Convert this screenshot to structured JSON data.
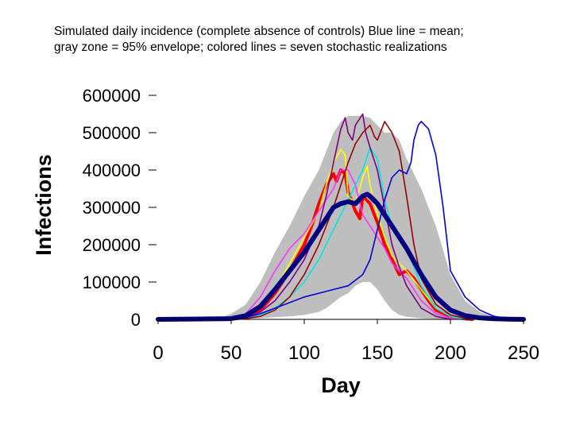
{
  "caption": {
    "line1": "Simulated daily incidence (complete absence of controls) Blue line = mean;",
    "line2": "gray zone = 95% envelope; colored lines = seven stochastic realizations"
  },
  "chart_data": {
    "type": "line",
    "title": "",
    "xlabel": "Day",
    "ylabel": "Infections",
    "xlim": [
      0,
      250
    ],
    "ylim": [
      0,
      600000
    ],
    "x_ticks": [
      0,
      50,
      100,
      150,
      200,
      250
    ],
    "y_ticks": [
      0,
      100000,
      200000,
      300000,
      400000,
      500000,
      600000
    ],
    "y_tick_labels": [
      "0",
      "100000",
      "200000",
      "300000",
      "400000",
      "500000",
      "600000"
    ],
    "grid": false,
    "legend": "none",
    "envelope": {
      "name": "95% envelope",
      "color": "#bebebe",
      "x": [
        0,
        40,
        50,
        60,
        70,
        80,
        90,
        100,
        110,
        115,
        120,
        125,
        130,
        135,
        140,
        145,
        150,
        155,
        160,
        165,
        170,
        180,
        190,
        200,
        210,
        220,
        230,
        240,
        250
      ],
      "upper": [
        0,
        1000,
        15000,
        40000,
        100000,
        180000,
        250000,
        330000,
        400000,
        450000,
        500000,
        530000,
        545000,
        545000,
        545000,
        540000,
        520000,
        500000,
        500000,
        480000,
        430000,
        350000,
        250000,
        120000,
        50000,
        20000,
        8000,
        3000,
        0
      ],
      "lower": [
        0,
        0,
        0,
        1000,
        3000,
        6000,
        8000,
        12000,
        20000,
        30000,
        45000,
        60000,
        70000,
        90000,
        100000,
        100000,
        80000,
        50000,
        25000,
        12000,
        7000,
        3000,
        1000,
        0,
        0,
        0,
        0,
        0,
        0
      ]
    },
    "series": [
      {
        "color": "#ff0000",
        "x": [
          0,
          50,
          60,
          70,
          80,
          90,
          100,
          105,
          110,
          115,
          120,
          122,
          125,
          128,
          130,
          135,
          138,
          140,
          145,
          150,
          155,
          160,
          165,
          170,
          175,
          180,
          185,
          190,
          200,
          210,
          215
        ],
        "values": [
          0,
          500,
          5000,
          25000,
          70000,
          130000,
          200000,
          250000,
          310000,
          360000,
          390000,
          370000,
          400000,
          390000,
          340000,
          290000,
          270000,
          330000,
          310000,
          260000,
          200000,
          160000,
          120000,
          130000,
          110000,
          80000,
          50000,
          25000,
          8000,
          1500,
          0
        ]
      },
      {
        "color": "#ffff00",
        "x": [
          0,
          50,
          60,
          70,
          80,
          90,
          100,
          110,
          115,
          120,
          125,
          128,
          130,
          135,
          140,
          143,
          145,
          150,
          155,
          160,
          170,
          180,
          190,
          200,
          210
        ],
        "values": [
          0,
          1000,
          8000,
          30000,
          80000,
          150000,
          220000,
          290000,
          360000,
          420000,
          455000,
          440000,
          330000,
          310000,
          380000,
          410000,
          360000,
          280000,
          220000,
          170000,
          130000,
          80000,
          30000,
          8000,
          0
        ]
      },
      {
        "color": "#ff33ff",
        "x": [
          0,
          50,
          60,
          70,
          80,
          90,
          100,
          110,
          120,
          125,
          130,
          135,
          140,
          150,
          155,
          160,
          170,
          180,
          190,
          200,
          210
        ],
        "values": [
          0,
          2000,
          15000,
          60000,
          130000,
          190000,
          230000,
          290000,
          350000,
          400000,
          400000,
          360000,
          280000,
          220000,
          190000,
          150000,
          110000,
          50000,
          15000,
          3000,
          0
        ]
      },
      {
        "color": "#00e5e5",
        "x": [
          0,
          50,
          60,
          70,
          80,
          90,
          100,
          110,
          120,
          130,
          140,
          145,
          150,
          155,
          160,
          165,
          170,
          180,
          190,
          200,
          210
        ],
        "values": [
          0,
          500,
          3000,
          10000,
          30000,
          60000,
          100000,
          160000,
          240000,
          320000,
          400000,
          460000,
          430000,
          320000,
          250000,
          220000,
          190000,
          90000,
          30000,
          8000,
          0
        ]
      },
      {
        "color": "#800080",
        "x": [
          0,
          50,
          60,
          70,
          80,
          90,
          100,
          110,
          115,
          120,
          125,
          128,
          130,
          133,
          135,
          140,
          142,
          145,
          150,
          155,
          160,
          165,
          170,
          180,
          190,
          200
        ],
        "values": [
          0,
          1000,
          5000,
          20000,
          50000,
          100000,
          160000,
          250000,
          330000,
          420000,
          510000,
          540000,
          500000,
          480000,
          520000,
          550000,
          500000,
          460000,
          400000,
          300000,
          200000,
          140000,
          90000,
          30000,
          8000,
          0
        ]
      },
      {
        "color": "#990000",
        "x": [
          0,
          50,
          60,
          70,
          80,
          90,
          100,
          110,
          120,
          130,
          135,
          140,
          145,
          148,
          150,
          155,
          160,
          165,
          170,
          175,
          180,
          190,
          200,
          210,
          215
        ],
        "values": [
          0,
          500,
          2000,
          8000,
          25000,
          60000,
          120000,
          200000,
          300000,
          420000,
          470000,
          500000,
          520000,
          490000,
          480000,
          530000,
          500000,
          450000,
          330000,
          200000,
          110000,
          40000,
          12000,
          3000,
          0
        ]
      },
      {
        "color": "#0000dd",
        "x": [
          0,
          50,
          60,
          70,
          80,
          90,
          100,
          110,
          120,
          130,
          140,
          145,
          150,
          155,
          160,
          165,
          170,
          173,
          175,
          178,
          180,
          185,
          190,
          195,
          200,
          210,
          220,
          230,
          240,
          250
        ],
        "values": [
          0,
          500,
          5000,
          15000,
          30000,
          45000,
          60000,
          70000,
          80000,
          90000,
          120000,
          160000,
          240000,
          320000,
          380000,
          400000,
          390000,
          420000,
          480000,
          520000,
          530000,
          510000,
          440000,
          300000,
          130000,
          60000,
          25000,
          8000,
          2000,
          0
        ]
      },
      {
        "name": "mean",
        "color": "#000080",
        "x": [
          0,
          50,
          60,
          70,
          80,
          90,
          100,
          110,
          115,
          120,
          125,
          130,
          135,
          140,
          143,
          145,
          150,
          155,
          160,
          170,
          180,
          190,
          200,
          210,
          220,
          230,
          240,
          250
        ],
        "values": [
          0,
          2000,
          10000,
          35000,
          80000,
          130000,
          180000,
          240000,
          270000,
          300000,
          310000,
          315000,
          310000,
          330000,
          335000,
          330000,
          310000,
          280000,
          250000,
          190000,
          120000,
          60000,
          25000,
          10000,
          4000,
          1500,
          500,
          0
        ]
      }
    ]
  }
}
